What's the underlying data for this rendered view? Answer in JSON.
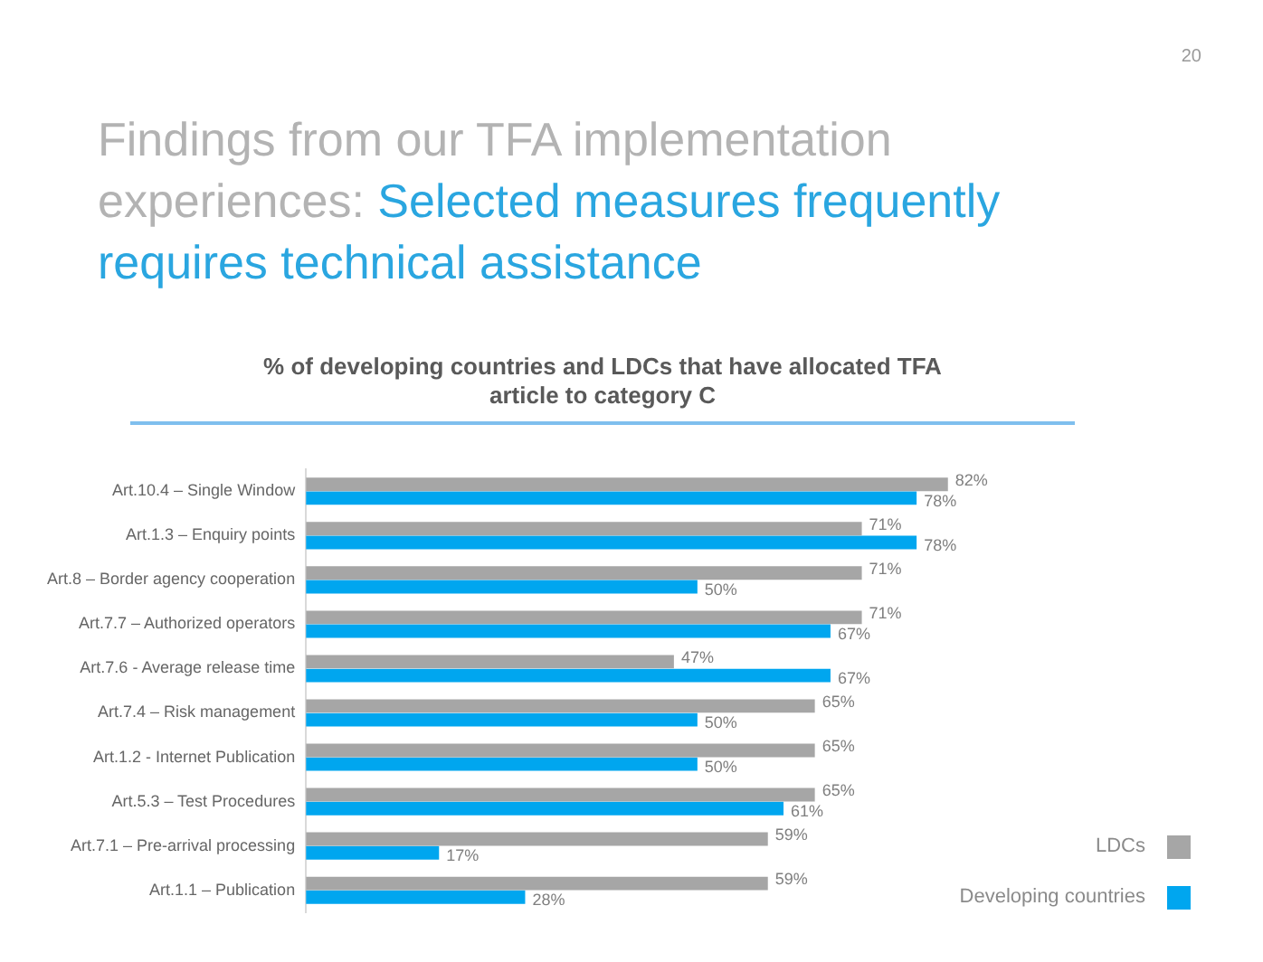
{
  "chart_data": {
    "type": "bar",
    "orientation": "horizontal",
    "title": "Findings from our TFA implementation experiences:",
    "subtitle": "Selected measures frequently requires technical assistance",
    "annotations": [
      "20",
      "% of developing countries and LDCs that have allocated TFA article to category C"
    ],
    "categories": [
      "Art.10.4 – Single Window",
      "Art.1.3 – Enquiry points",
      "Art.8 – Border agency cooperation",
      "Art.7.7 – Authorized operators",
      "Art.7.6 - Average release time",
      "Art.7.4 – Risk management",
      "Art.1.2 - Internet Publication",
      "Art.5.3 – Test Procedures",
      "Art.7.1 – Pre-arrival processing",
      "Art.1.1 – Publication"
    ],
    "series": [
      {
        "name": "LDCs",
        "color": "#a6a6a6",
        "values": [
          82,
          71,
          71,
          71,
          47,
          65,
          65,
          65,
          59,
          59
        ],
        "value_labels": [
          "82%",
          "71%",
          "71%",
          "71%",
          "47%",
          "65%",
          "65%",
          "65%",
          "59%",
          "59%"
        ]
      },
      {
        "name": "Developing countries",
        "color": "#00a6ef",
        "values": [
          78,
          78,
          50,
          67,
          67,
          50,
          50,
          61,
          17,
          28
        ],
        "value_labels": [
          "78%",
          "78%",
          "50%",
          "67%",
          "67%",
          "50%",
          "50%",
          "61%",
          "17%",
          "28%"
        ]
      }
    ],
    "legend": "bottom right"
  }
}
